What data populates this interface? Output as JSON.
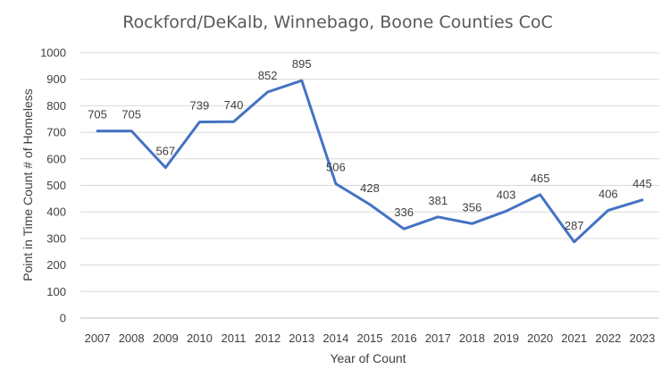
{
  "chart_data": {
    "type": "line",
    "title": "Rockford/DeKalb, Winnebago, Boone Counties CoC",
    "xlabel": "Year of Count",
    "ylabel": "Point in Time Count # of Homeless",
    "categories": [
      "2007",
      "2008",
      "2009",
      "2010",
      "2011",
      "2012",
      "2013",
      "2014",
      "2015",
      "2016",
      "2017",
      "2018",
      "2019",
      "2020",
      "2021",
      "2022",
      "2023"
    ],
    "values": [
      705,
      705,
      567,
      739,
      740,
      852,
      895,
      506,
      428,
      336,
      381,
      356,
      403,
      465,
      287,
      406,
      445
    ],
    "ylim": [
      0,
      1000
    ],
    "yticks": [
      0,
      100,
      200,
      300,
      400,
      500,
      600,
      700,
      800,
      900,
      1000
    ],
    "grid": true,
    "legend": "none",
    "series_color": "#4472c4"
  }
}
